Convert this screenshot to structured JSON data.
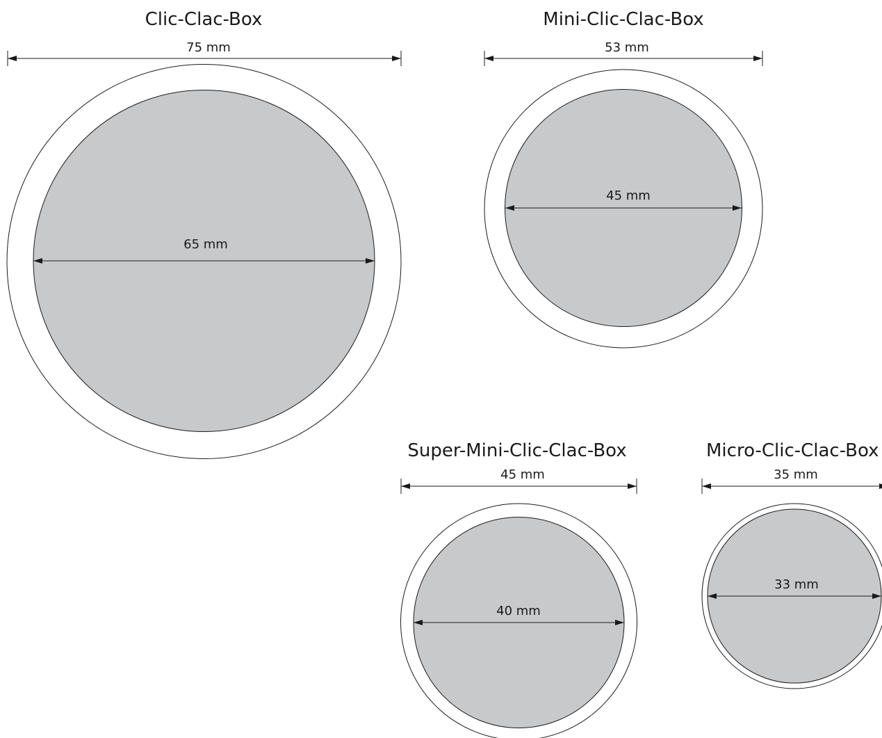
{
  "colors": {
    "ink": "#1a1a1a",
    "disc_fill": "#c8c9cb",
    "background": "#ffffff"
  },
  "boxes": [
    {
      "id": "clic-clac-box",
      "title": "Clic-Clac-Box",
      "outer_label": "75 mm",
      "inner_label": "65 mm",
      "outer_mm": 75,
      "inner_mm": 65
    },
    {
      "id": "mini-clic-clac-box",
      "title": "Mini-Clic-Clac-Box",
      "outer_label": "53 mm",
      "inner_label": "45 mm",
      "outer_mm": 53,
      "inner_mm": 45
    },
    {
      "id": "super-mini-clic-clac-box",
      "title": "Super-Mini-Clic-Clac-Box",
      "outer_label": "45 mm",
      "inner_label": "40 mm",
      "outer_mm": 45,
      "inner_mm": 40
    },
    {
      "id": "micro-clic-clac-box",
      "title": "Micro-Clic-Clac-Box",
      "outer_label": "35 mm",
      "inner_label": "33 mm",
      "outer_mm": 35,
      "inner_mm": 33
    }
  ]
}
